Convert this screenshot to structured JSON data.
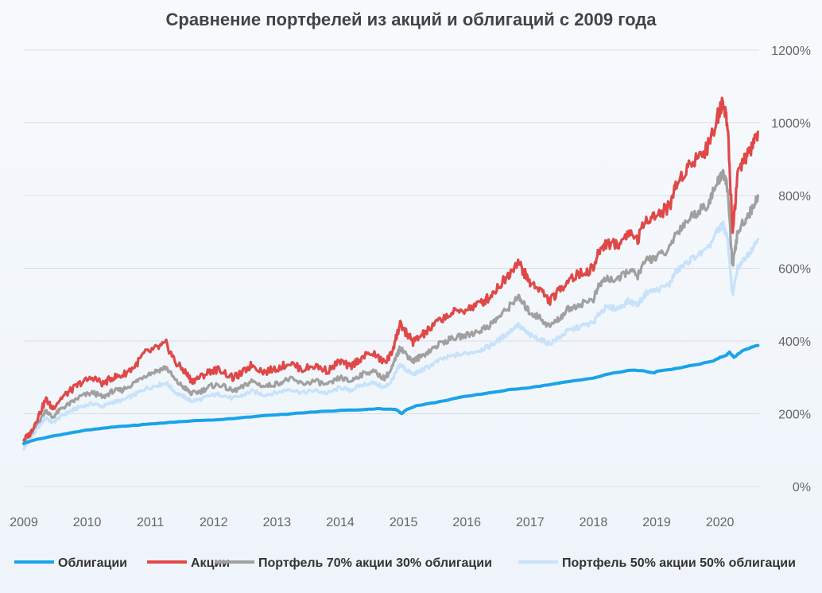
{
  "chart_data": {
    "type": "line",
    "title": "Сравнение портфелей из акций и облигаций  с 2009 года",
    "xlabel": "",
    "ylabel": "",
    "ylim": [
      0,
      1200
    ],
    "yticks": [
      0,
      200,
      400,
      600,
      800,
      1000,
      1200
    ],
    "ytick_labels": [
      "0%",
      "200%",
      "400%",
      "600%",
      "800%",
      "1000%",
      "1200%"
    ],
    "xlim": [
      2009,
      2020.62
    ],
    "xticks": [
      2009,
      2010,
      2011,
      2012,
      2013,
      2014,
      2015,
      2016,
      2017,
      2018,
      2019,
      2020
    ],
    "xtick_labels": [
      "2009",
      "2010",
      "2011",
      "2012",
      "2013",
      "2014",
      "2015",
      "2016",
      "2017",
      "2018",
      "2019",
      "2020"
    ],
    "grid": "horizontal",
    "legend": "bottom",
    "colors": {
      "bonds": "#1aa3e8",
      "stocks": "#e04848",
      "p70": "#a0a0a0",
      "p50": "#c7e2fa",
      "grid": "#d9dee4",
      "tick": "#666666"
    },
    "series": [
      {
        "name": "Облигации",
        "key": "bonds",
        "x": [
          2009.0,
          2009.1,
          2009.3,
          2009.5,
          2009.75,
          2010.0,
          2010.25,
          2010.5,
          2010.75,
          2011.0,
          2011.3,
          2011.6,
          2012.0,
          2012.3,
          2012.6,
          2013.0,
          2013.3,
          2013.6,
          2014.0,
          2014.3,
          2014.6,
          2014.88,
          2014.97,
          2015.05,
          2015.2,
          2015.4,
          2015.6,
          2015.8,
          2016.0,
          2016.3,
          2016.6,
          2016.75,
          2017.0,
          2017.3,
          2017.6,
          2018.0,
          2018.2,
          2018.4,
          2018.6,
          2018.8,
          2018.95,
          2019.0,
          2019.3,
          2019.6,
          2019.9,
          2020.0,
          2020.1,
          2020.15,
          2020.22,
          2020.35,
          2020.5,
          2020.6
        ],
        "values": [
          118,
          125,
          133,
          140,
          148,
          155,
          160,
          165,
          168,
          172,
          176,
          180,
          183,
          187,
          192,
          197,
          201,
          205,
          209,
          211,
          214,
          212,
          200,
          212,
          222,
          228,
          234,
          242,
          248,
          256,
          264,
          268,
          272,
          280,
          288,
          298,
          308,
          314,
          320,
          318,
          312,
          316,
          324,
          334,
          345,
          355,
          360,
          370,
          355,
          372,
          383,
          388
        ]
      },
      {
        "name": "Акции",
        "key": "stocks",
        "x": [
          2009.0,
          2009.1,
          2009.22,
          2009.35,
          2009.45,
          2009.6,
          2009.75,
          2009.9,
          2010.1,
          2010.25,
          2010.4,
          2010.55,
          2010.75,
          2010.9,
          2011.1,
          2011.25,
          2011.4,
          2011.55,
          2011.65,
          2011.8,
          2011.95,
          2012.1,
          2012.3,
          2012.45,
          2012.6,
          2012.8,
          2013.0,
          2013.2,
          2013.4,
          2013.6,
          2013.8,
          2014.0,
          2014.15,
          2014.3,
          2014.5,
          2014.7,
          2014.8,
          2014.9,
          2014.95,
          2015.05,
          2015.15,
          2015.25,
          2015.4,
          2015.6,
          2015.8,
          2016.0,
          2016.2,
          2016.35,
          2016.5,
          2016.65,
          2016.8,
          2016.9,
          2017.0,
          2017.15,
          2017.3,
          2017.45,
          2017.6,
          2017.8,
          2018.0,
          2018.1,
          2018.2,
          2018.4,
          2018.55,
          2018.7,
          2018.85,
          2019.0,
          2019.2,
          2019.3,
          2019.45,
          2019.6,
          2019.8,
          2019.95,
          2020.0,
          2020.05,
          2020.12,
          2020.2,
          2020.28,
          2020.4,
          2020.5,
          2020.6
        ],
        "values": [
          130,
          145,
          190,
          240,
          215,
          245,
          265,
          285,
          300,
          282,
          300,
          305,
          330,
          365,
          380,
          392,
          340,
          315,
          290,
          302,
          318,
          322,
          298,
          312,
          335,
          315,
          325,
          340,
          322,
          332,
          318,
          345,
          328,
          350,
          368,
          340,
          362,
          420,
          445,
          420,
          398,
          410,
          430,
          462,
          478,
          488,
          502,
          520,
          550,
          580,
          620,
          590,
          560,
          545,
          510,
          535,
          570,
          585,
          600,
          650,
          670,
          665,
          700,
          680,
          740,
          745,
          770,
          825,
          870,
          900,
          930,
          1010,
          1040,
          1055,
          1000,
          700,
          860,
          900,
          930,
          975
        ]
      },
      {
        "name": "Портфель 70% акции 30% облигации",
        "key": "p70",
        "x": [
          2009.0,
          2009.1,
          2009.22,
          2009.35,
          2009.45,
          2009.6,
          2009.75,
          2009.9,
          2010.1,
          2010.25,
          2010.4,
          2010.55,
          2010.75,
          2010.9,
          2011.1,
          2011.25,
          2011.4,
          2011.55,
          2011.65,
          2011.8,
          2011.95,
          2012.1,
          2012.3,
          2012.45,
          2012.6,
          2012.8,
          2013.0,
          2013.2,
          2013.4,
          2013.6,
          2013.8,
          2014.0,
          2014.15,
          2014.3,
          2014.5,
          2014.7,
          2014.8,
          2014.9,
          2014.95,
          2015.05,
          2015.15,
          2015.25,
          2015.4,
          2015.6,
          2015.8,
          2016.0,
          2016.2,
          2016.35,
          2016.5,
          2016.65,
          2016.8,
          2016.9,
          2017.0,
          2017.15,
          2017.3,
          2017.45,
          2017.6,
          2017.8,
          2018.0,
          2018.1,
          2018.2,
          2018.4,
          2018.55,
          2018.7,
          2018.85,
          2019.0,
          2019.2,
          2019.3,
          2019.45,
          2019.6,
          2019.8,
          2019.95,
          2020.0,
          2020.05,
          2020.12,
          2020.2,
          2020.28,
          2020.4,
          2020.5,
          2020.6
        ],
        "values": [
          125,
          140,
          175,
          210,
          190,
          215,
          230,
          248,
          258,
          245,
          262,
          265,
          285,
          305,
          318,
          328,
          290,
          270,
          255,
          262,
          276,
          280,
          262,
          272,
          290,
          275,
          283,
          296,
          282,
          290,
          278,
          300,
          288,
          305,
          318,
          298,
          318,
          362,
          382,
          362,
          345,
          355,
          372,
          396,
          408,
          416,
          428,
          442,
          465,
          490,
          522,
          500,
          478,
          465,
          440,
          460,
          488,
          502,
          515,
          555,
          572,
          568,
          595,
          580,
          625,
          630,
          652,
          695,
          725,
          750,
          775,
          830,
          850,
          862,
          820,
          600,
          700,
          735,
          760,
          800
        ]
      },
      {
        "name": "Портфель 50% акции 50% облигации",
        "key": "p50",
        "x": [
          2009.0,
          2009.1,
          2009.22,
          2009.35,
          2009.45,
          2009.6,
          2009.75,
          2009.9,
          2010.1,
          2010.25,
          2010.4,
          2010.55,
          2010.75,
          2010.9,
          2011.1,
          2011.25,
          2011.4,
          2011.55,
          2011.65,
          2011.8,
          2011.95,
          2012.1,
          2012.3,
          2012.45,
          2012.6,
          2012.8,
          2013.0,
          2013.2,
          2013.4,
          2013.6,
          2013.8,
          2014.0,
          2014.15,
          2014.3,
          2014.5,
          2014.7,
          2014.8,
          2014.9,
          2014.95,
          2015.05,
          2015.15,
          2015.25,
          2015.4,
          2015.6,
          2015.8,
          2016.0,
          2016.2,
          2016.35,
          2016.5,
          2016.65,
          2016.8,
          2016.9,
          2017.0,
          2017.15,
          2017.3,
          2017.45,
          2017.6,
          2017.8,
          2018.0,
          2018.1,
          2018.2,
          2018.4,
          2018.55,
          2018.7,
          2018.85,
          2019.0,
          2019.2,
          2019.3,
          2019.45,
          2019.6,
          2019.8,
          2019.95,
          2020.0,
          2020.05,
          2020.12,
          2020.2,
          2020.28,
          2020.4,
          2020.5,
          2020.6
        ],
        "values": [
          105,
          130,
          160,
          190,
          175,
          195,
          208,
          220,
          228,
          220,
          232,
          236,
          252,
          268,
          278,
          285,
          258,
          245,
          235,
          240,
          250,
          254,
          242,
          250,
          262,
          252,
          258,
          268,
          258,
          264,
          256,
          272,
          264,
          276,
          286,
          272,
          288,
          320,
          335,
          320,
          308,
          316,
          330,
          350,
          360,
          366,
          375,
          385,
          402,
          422,
          445,
          430,
          415,
          405,
          392,
          408,
          428,
          440,
          450,
          478,
          492,
          490,
          510,
          500,
          535,
          540,
          555,
          590,
          612,
          632,
          650,
          700,
          710,
          720,
          680,
          525,
          600,
          630,
          652,
          680
        ]
      }
    ]
  }
}
